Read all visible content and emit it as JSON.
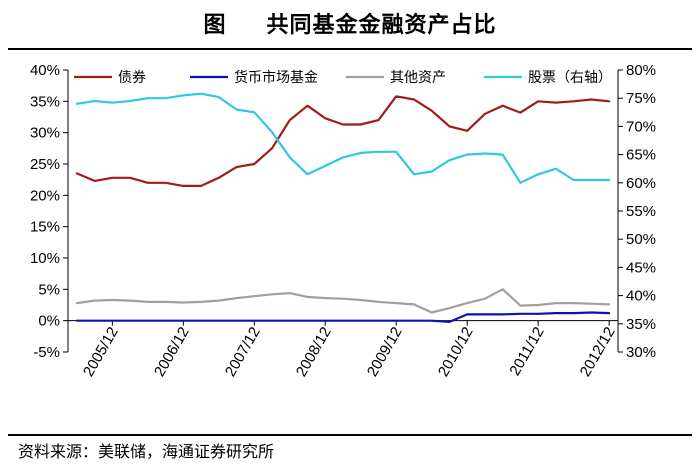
{
  "title": "共同基金金融资产占比",
  "figure_label": "图",
  "source": "资料来源：美联储，海通证券研究所",
  "chart_data": {
    "type": "line",
    "x": [
      "2005/06",
      "2005/09",
      "2005/12",
      "2006/03",
      "2006/06",
      "2006/09",
      "2006/12",
      "2007/03",
      "2007/06",
      "2007/09",
      "2007/12",
      "2008/03",
      "2008/06",
      "2008/09",
      "2008/12",
      "2009/03",
      "2009/06",
      "2009/09",
      "2009/12",
      "2010/03",
      "2010/06",
      "2010/09",
      "2010/12",
      "2011/03",
      "2011/06",
      "2011/09",
      "2011/12",
      "2012/03",
      "2012/06",
      "2012/09",
      "2012/12"
    ],
    "x_ticks": [
      "2005/12",
      "2006/12",
      "2007/12",
      "2008/12",
      "2009/12",
      "2010/12",
      "2011/12",
      "2012/12"
    ],
    "y_left": {
      "min": -5,
      "max": 40,
      "step": 5,
      "unit": "%",
      "ticks": [
        "-5%",
        "0%",
        "5%",
        "10%",
        "15%",
        "20%",
        "25%",
        "30%",
        "35%",
        "40%"
      ]
    },
    "y_right": {
      "min": 30,
      "max": 80,
      "step": 5,
      "unit": "%",
      "ticks": [
        "30%",
        "35%",
        "40%",
        "45%",
        "50%",
        "55%",
        "60%",
        "65%",
        "70%",
        "75%",
        "80%"
      ]
    },
    "series": [
      {
        "name": "债券",
        "axis": "left",
        "color": "#A01C1C",
        "values": [
          23.5,
          22.3,
          22.8,
          22.8,
          22.0,
          22.0,
          21.5,
          21.5,
          22.8,
          24.5,
          25.0,
          27.5,
          32.0,
          34.3,
          32.3,
          31.3,
          31.3,
          32.0,
          35.8,
          35.3,
          33.5,
          31.0,
          30.3,
          33.0,
          34.3,
          33.2,
          35.0,
          34.8,
          35.0,
          35.3,
          35.0
        ]
      },
      {
        "name": "货币市场基金",
        "axis": "left",
        "color": "#1010B0",
        "values": [
          0,
          0,
          0,
          0,
          0,
          0,
          0,
          0,
          0,
          0,
          0,
          0,
          0,
          0,
          0,
          0,
          0,
          0,
          0,
          0,
          0,
          -0.2,
          1.0,
          1.0,
          1.0,
          1.1,
          1.1,
          1.2,
          1.2,
          1.3,
          1.2
        ]
      },
      {
        "name": "其他资产",
        "axis": "left",
        "color": "#A0A0A0",
        "values": [
          2.8,
          3.2,
          3.3,
          3.2,
          3.0,
          3.0,
          2.9,
          3.0,
          3.2,
          3.6,
          3.9,
          4.2,
          4.4,
          3.8,
          3.6,
          3.5,
          3.3,
          3.0,
          2.8,
          2.6,
          1.3,
          2.0,
          2.8,
          3.5,
          5.0,
          2.4,
          2.5,
          2.8,
          2.8,
          2.7,
          2.6
        ]
      },
      {
        "name": "股票（右轴）",
        "axis": "right",
        "color": "#30C8E0",
        "values": [
          74.0,
          74.5,
          74.2,
          74.5,
          75.0,
          75.0,
          75.5,
          75.8,
          75.2,
          73.0,
          72.5,
          69.0,
          64.5,
          61.5,
          63.0,
          64.5,
          65.3,
          65.5,
          65.5,
          61.5,
          62.0,
          64.0,
          65.0,
          65.2,
          65.0,
          60.0,
          61.5,
          62.5,
          60.5,
          60.5,
          60.5
        ]
      }
    ],
    "legend_position": "top",
    "grid": false
  }
}
